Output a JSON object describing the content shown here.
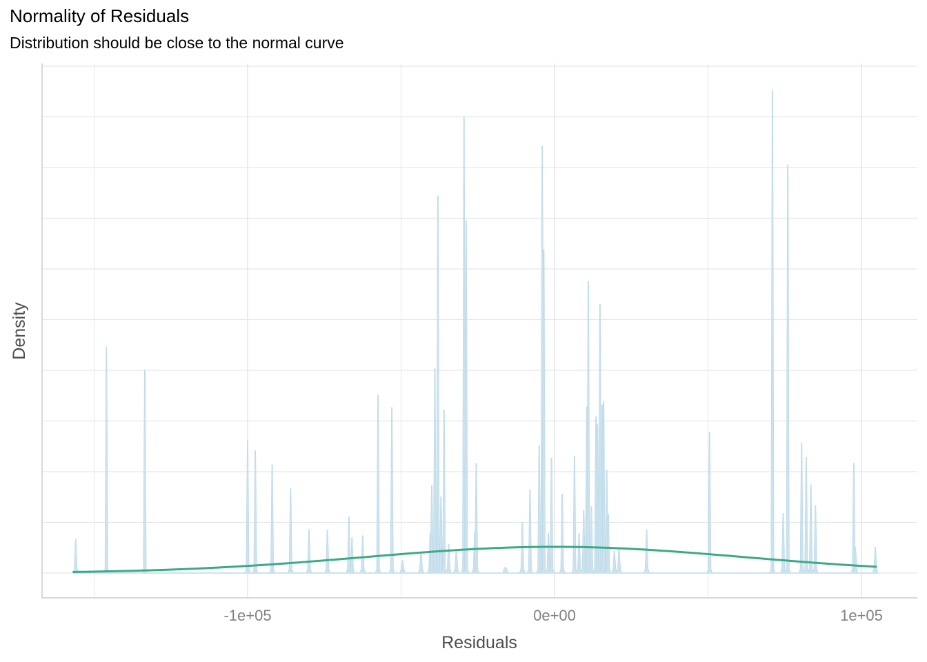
{
  "chart_data": {
    "type": "area",
    "title": "Normality of Residuals",
    "subtitle": "Distribution should be close to the normal curve",
    "xlabel": "Residuals",
    "ylabel": "Density",
    "x_ticks": [
      -100000,
      0,
      100000
    ],
    "x_tick_labels": [
      "-1e+05",
      "0e+00",
      "1e+05"
    ],
    "xlim": [
      -170000,
      117000
    ],
    "y_ticks_shown": false,
    "grid": true,
    "colors": {
      "density_fill": "#cce3ee",
      "normal_curve": "#3aaa85",
      "grid": "#e3e6ea",
      "axis": "#c9cdd1"
    },
    "series": [
      {
        "role": "residual density spikes",
        "peaks": [
          {
            "x": -156000,
            "y": 0.069
          },
          {
            "x": -146000,
            "y": 0.466
          },
          {
            "x": -133500,
            "y": 0.418
          },
          {
            "x": -100000,
            "y": 0.272
          },
          {
            "x": -97500,
            "y": 0.252
          },
          {
            "x": -92000,
            "y": 0.223
          },
          {
            "x": -86000,
            "y": 0.174
          },
          {
            "x": -80000,
            "y": 0.089
          },
          {
            "x": -74000,
            "y": 0.089
          },
          {
            "x": -67000,
            "y": 0.116
          },
          {
            "x": -66000,
            "y": 0.073
          },
          {
            "x": -62500,
            "y": 0.077
          },
          {
            "x": -57500,
            "y": 0.367
          },
          {
            "x": -53000,
            "y": 0.341
          },
          {
            "x": -49500,
            "y": 0.026
          },
          {
            "x": -43500,
            "y": 0.044
          },
          {
            "x": -40500,
            "y": 0.082
          },
          {
            "x": -40000,
            "y": 0.181
          },
          {
            "x": -39000,
            "y": 0.421
          },
          {
            "x": -38000,
            "y": 0.777
          },
          {
            "x": -37000,
            "y": 0.157
          },
          {
            "x": -36000,
            "y": 0.336
          },
          {
            "x": -34500,
            "y": 0.059
          },
          {
            "x": -32000,
            "y": 0.048
          },
          {
            "x": -29000,
            "y": 0.017
          },
          {
            "x": -26000,
            "y": 0.084
          },
          {
            "x": -25500,
            "y": 0.226
          },
          {
            "x": -29500,
            "y": 0.939
          },
          {
            "x": -28800,
            "y": 0.726
          },
          {
            "x": -16000,
            "y": 0.012
          },
          {
            "x": -10500,
            "y": 0.104
          },
          {
            "x": -8000,
            "y": 0.172
          },
          {
            "x": -5000,
            "y": 0.263
          },
          {
            "x": -4000,
            "y": 0.879
          },
          {
            "x": -3500,
            "y": 0.666
          },
          {
            "x": -2000,
            "y": 0.082
          },
          {
            "x": -1000,
            "y": 0.237
          },
          {
            "x": 2500,
            "y": 0.162
          },
          {
            "x": 6500,
            "y": 0.241
          },
          {
            "x": 8000,
            "y": 0.082
          },
          {
            "x": 9500,
            "y": 0.129
          },
          {
            "x": 10500,
            "y": 0.342
          },
          {
            "x": 11000,
            "y": 0.601
          },
          {
            "x": 12000,
            "y": 0.137
          },
          {
            "x": 13500,
            "y": 0.322
          },
          {
            "x": 14000,
            "y": 0.306
          },
          {
            "x": 14800,
            "y": 0.554
          },
          {
            "x": 15500,
            "y": 0.347
          },
          {
            "x": 16000,
            "y": 0.354
          },
          {
            "x": 17000,
            "y": 0.212
          },
          {
            "x": 17500,
            "y": 0.121
          },
          {
            "x": 19500,
            "y": 0.045
          },
          {
            "x": 21000,
            "y": 0.049
          },
          {
            "x": 30000,
            "y": 0.089
          },
          {
            "x": 50500,
            "y": 0.29
          },
          {
            "x": 71000,
            "y": 0.994
          },
          {
            "x": 76000,
            "y": 0.841
          },
          {
            "x": 74500,
            "y": 0.123
          },
          {
            "x": 80500,
            "y": 0.269
          },
          {
            "x": 82000,
            "y": 0.238
          },
          {
            "x": 83500,
            "y": 0.182
          },
          {
            "x": 85000,
            "y": 0.139
          },
          {
            "x": 97500,
            "y": 0.226
          },
          {
            "x": 98000,
            "y": 0.053
          },
          {
            "x": 104500,
            "y": 0.053
          }
        ]
      },
      {
        "role": "normal curve",
        "mean": 0,
        "sd": 62000,
        "peak_density": 0.054,
        "x_range": [
          -157000,
          105000
        ]
      }
    ]
  }
}
